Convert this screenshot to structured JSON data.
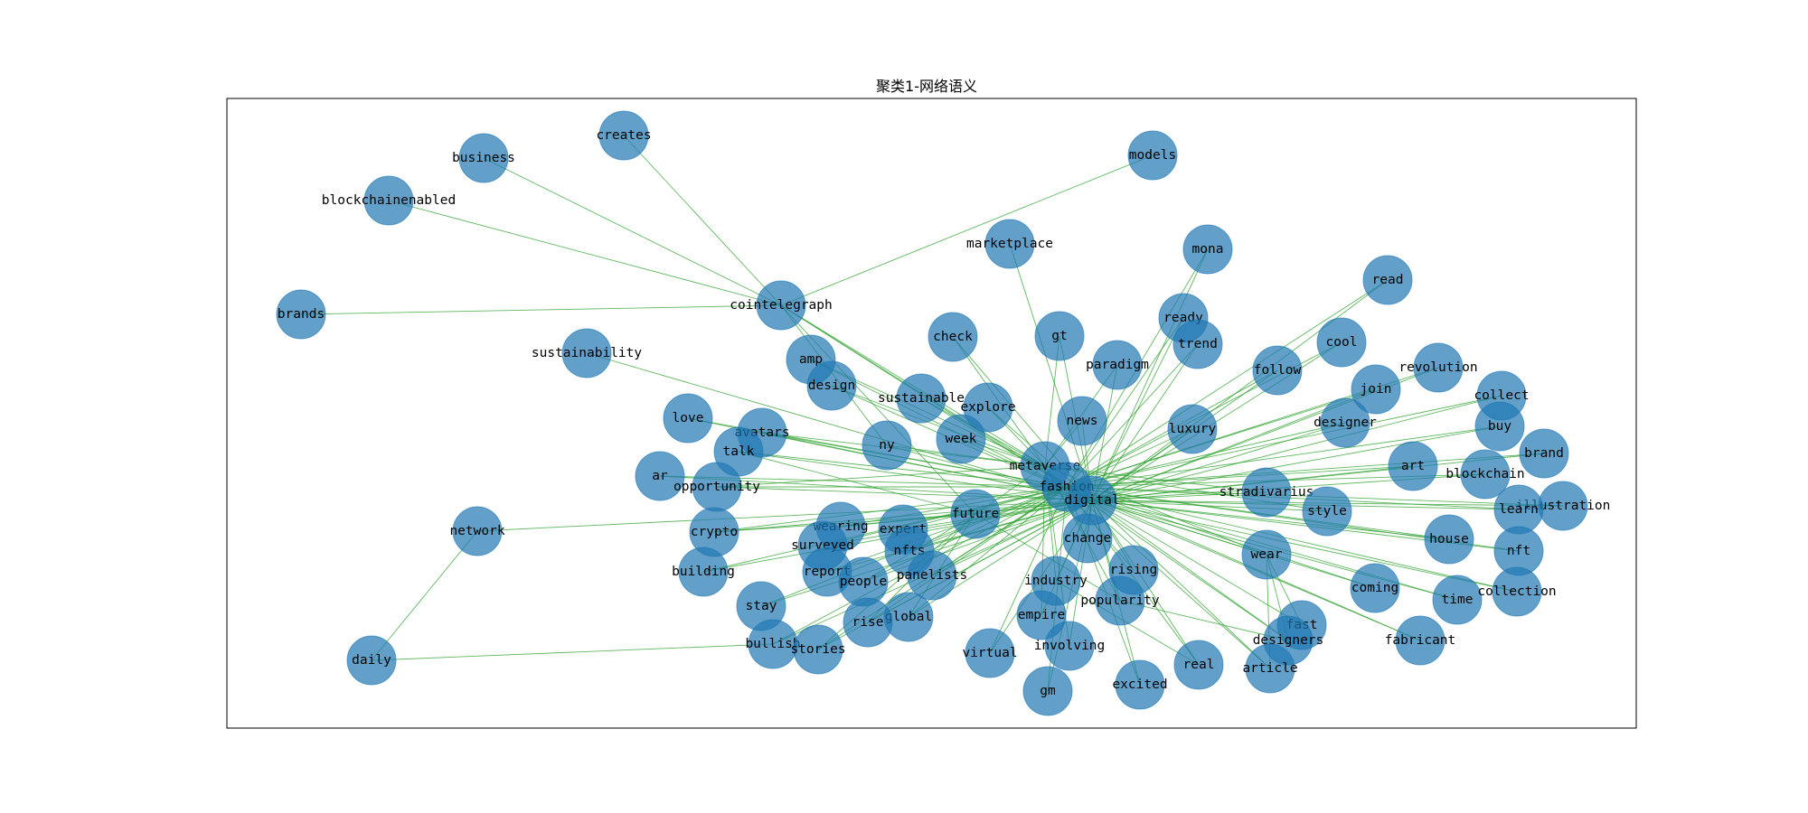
{
  "title": "聚类1-网络语义",
  "nodes": [
    "creates",
    "business",
    "blockchainenabled",
    "models",
    "marketplace",
    "mona",
    "read",
    "brands",
    "cointelegraph",
    "ready",
    "trend",
    "gt",
    "check",
    "sustainability",
    "amp",
    "design",
    "paradigm",
    "cool",
    "follow",
    "revolution",
    "join",
    "collect",
    "sustainable",
    "explore",
    "love",
    "avatars",
    "news",
    "designer",
    "buy",
    "luxury",
    "talk",
    "ny",
    "week",
    "brand",
    "ar",
    "metaverse",
    "art",
    "blockchain",
    "opportunity",
    "fashion",
    "digital",
    "stradivarius",
    "illustration",
    "learn",
    "style",
    "network",
    "future",
    "crypto",
    "wearing",
    "expert",
    "house",
    "surveyed",
    "nfts",
    "nft",
    "change",
    "wear",
    "building",
    "report",
    "panelists",
    "people",
    "rising",
    "industry",
    "coming",
    "time",
    "collection",
    "stay",
    "popularity",
    "global",
    "empire",
    "fast",
    "rise",
    "bullish",
    "stories",
    "designers",
    "fabricant",
    "involving",
    "virtual",
    "daily",
    "real",
    "article",
    "excited",
    "gm"
  ],
  "edges": [
    [
      "cointelegraph",
      "creates"
    ],
    [
      "cointelegraph",
      "business"
    ],
    [
      "cointelegraph",
      "blockchainenabled"
    ],
    [
      "cointelegraph",
      "brands"
    ],
    [
      "cointelegraph",
      "models"
    ],
    [
      "network",
      "daily"
    ],
    [
      "network",
      "digital"
    ],
    [
      "daily",
      "bullish"
    ],
    [
      "sustainability",
      "digital"
    ],
    [
      "cointelegraph",
      "digital"
    ],
    [
      "cointelegraph",
      "fashion"
    ],
    [
      "cointelegraph",
      "metaverse"
    ],
    [
      "marketplace",
      "digital"
    ],
    [
      "mona",
      "digital"
    ],
    [
      "read",
      "digital"
    ],
    [
      "ready",
      "digital"
    ],
    [
      "trend",
      "digital"
    ],
    [
      "gt",
      "digital"
    ],
    [
      "check",
      "digital"
    ],
    [
      "amp",
      "digital"
    ],
    [
      "design",
      "digital"
    ],
    [
      "paradigm",
      "digital"
    ],
    [
      "cool",
      "digital"
    ],
    [
      "follow",
      "digital"
    ],
    [
      "revolution",
      "digital"
    ],
    [
      "join",
      "digital"
    ],
    [
      "collect",
      "digital"
    ],
    [
      "sustainable",
      "digital"
    ],
    [
      "explore",
      "digital"
    ],
    [
      "love",
      "digital"
    ],
    [
      "avatars",
      "digital"
    ],
    [
      "news",
      "digital"
    ],
    [
      "designer",
      "digital"
    ],
    [
      "buy",
      "digital"
    ],
    [
      "luxury",
      "digital"
    ],
    [
      "talk",
      "digital"
    ],
    [
      "ny",
      "digital"
    ],
    [
      "week",
      "digital"
    ],
    [
      "brand",
      "digital"
    ],
    [
      "ar",
      "digital"
    ],
    [
      "art",
      "digital"
    ],
    [
      "blockchain",
      "digital"
    ],
    [
      "opportunity",
      "digital"
    ],
    [
      "stradivarius",
      "digital"
    ],
    [
      "illustration",
      "digital"
    ],
    [
      "learn",
      "digital"
    ],
    [
      "style",
      "digital"
    ],
    [
      "future",
      "digital"
    ],
    [
      "crypto",
      "digital"
    ],
    [
      "wearing",
      "digital"
    ],
    [
      "expert",
      "digital"
    ],
    [
      "house",
      "digital"
    ],
    [
      "surveyed",
      "digital"
    ],
    [
      "nfts",
      "digital"
    ],
    [
      "nft",
      "digital"
    ],
    [
      "change",
      "digital"
    ],
    [
      "wear",
      "digital"
    ],
    [
      "building",
      "digital"
    ],
    [
      "report",
      "digital"
    ],
    [
      "panelists",
      "digital"
    ],
    [
      "people",
      "digital"
    ],
    [
      "rising",
      "digital"
    ],
    [
      "industry",
      "digital"
    ],
    [
      "coming",
      "digital"
    ],
    [
      "time",
      "digital"
    ],
    [
      "collection",
      "digital"
    ],
    [
      "stay",
      "digital"
    ],
    [
      "popularity",
      "digital"
    ],
    [
      "global",
      "digital"
    ],
    [
      "empire",
      "digital"
    ],
    [
      "fast",
      "digital"
    ],
    [
      "rise",
      "digital"
    ],
    [
      "bullish",
      "digital"
    ],
    [
      "stories",
      "digital"
    ],
    [
      "designers",
      "digital"
    ],
    [
      "fabricant",
      "digital"
    ],
    [
      "involving",
      "digital"
    ],
    [
      "virtual",
      "digital"
    ],
    [
      "real",
      "digital"
    ],
    [
      "article",
      "digital"
    ],
    [
      "excited",
      "digital"
    ],
    [
      "gm",
      "digital"
    ],
    [
      "love",
      "fashion"
    ],
    [
      "avatars",
      "fashion"
    ],
    [
      "talk",
      "fashion"
    ],
    [
      "ar",
      "fashion"
    ],
    [
      "opportunity",
      "fashion"
    ],
    [
      "crypto",
      "fashion"
    ],
    [
      "building",
      "fashion"
    ],
    [
      "wearing",
      "fashion"
    ],
    [
      "surveyed",
      "fashion"
    ],
    [
      "report",
      "fashion"
    ],
    [
      "people",
      "fashion"
    ],
    [
      "stay",
      "fashion"
    ],
    [
      "bullish",
      "fashion"
    ],
    [
      "stories",
      "fashion"
    ],
    [
      "rise",
      "fashion"
    ],
    [
      "global",
      "fashion"
    ],
    [
      "panelists",
      "fashion"
    ],
    [
      "nfts",
      "fashion"
    ],
    [
      "expert",
      "fashion"
    ],
    [
      "virtual",
      "fashion"
    ],
    [
      "gm",
      "fashion"
    ],
    [
      "excited",
      "fashion"
    ],
    [
      "real",
      "fashion"
    ],
    [
      "article",
      "fashion"
    ],
    [
      "designers",
      "fashion"
    ],
    [
      "fabricant",
      "fashion"
    ],
    [
      "collection",
      "fashion"
    ],
    [
      "time",
      "fashion"
    ],
    [
      "coming",
      "fashion"
    ],
    [
      "house",
      "fashion"
    ],
    [
      "nft",
      "fashion"
    ],
    [
      "learn",
      "fashion"
    ],
    [
      "illustration",
      "fashion"
    ],
    [
      "blockchain",
      "fashion"
    ],
    [
      "art",
      "fashion"
    ],
    [
      "brand",
      "fashion"
    ],
    [
      "buy",
      "fashion"
    ],
    [
      "collect",
      "fashion"
    ],
    [
      "designer",
      "fashion"
    ],
    [
      "join",
      "fashion"
    ],
    [
      "revolution",
      "fashion"
    ],
    [
      "follow",
      "fashion"
    ],
    [
      "cool",
      "fashion"
    ],
    [
      "read",
      "fashion"
    ],
    [
      "mona",
      "fashion"
    ],
    [
      "trend",
      "fashion"
    ],
    [
      "ready",
      "fashion"
    ],
    [
      "luxury",
      "fashion"
    ],
    [
      "amp",
      "metaverse"
    ],
    [
      "design",
      "metaverse"
    ],
    [
      "sustainable",
      "metaverse"
    ],
    [
      "explore",
      "metaverse"
    ],
    [
      "check",
      "metaverse"
    ],
    [
      "ny",
      "metaverse"
    ],
    [
      "week",
      "metaverse"
    ],
    [
      "news",
      "metaverse"
    ],
    [
      "paradigm",
      "metaverse"
    ],
    [
      "gt",
      "metaverse"
    ],
    [
      "future",
      "metaverse"
    ],
    [
      "change",
      "metaverse"
    ],
    [
      "industry",
      "metaverse"
    ],
    [
      "empire",
      "metaverse"
    ],
    [
      "involving",
      "metaverse"
    ],
    [
      "popularity",
      "metaverse"
    ],
    [
      "rising",
      "metaverse"
    ],
    [
      "wear",
      "metaverse"
    ],
    [
      "style",
      "metaverse"
    ],
    [
      "stradivarius",
      "metaverse"
    ],
    [
      "talk",
      "future"
    ],
    [
      "crypto",
      "future"
    ],
    [
      "wearing",
      "future"
    ],
    [
      "people",
      "future"
    ],
    [
      "global",
      "future"
    ],
    [
      "rise",
      "future"
    ],
    [
      "stories",
      "future"
    ],
    [
      "popularity",
      "future"
    ],
    [
      "fast",
      "wear"
    ],
    [
      "designers",
      "wear"
    ],
    [
      "article",
      "wear"
    ],
    [
      "popularity",
      "designers"
    ],
    [
      "industry",
      "real"
    ],
    [
      "avatars",
      "metaverse"
    ],
    [
      "opportunity",
      "metaverse"
    ],
    [
      "cointelegraph",
      "future"
    ],
    [
      "cointelegraph",
      "ny"
    ]
  ]
}
